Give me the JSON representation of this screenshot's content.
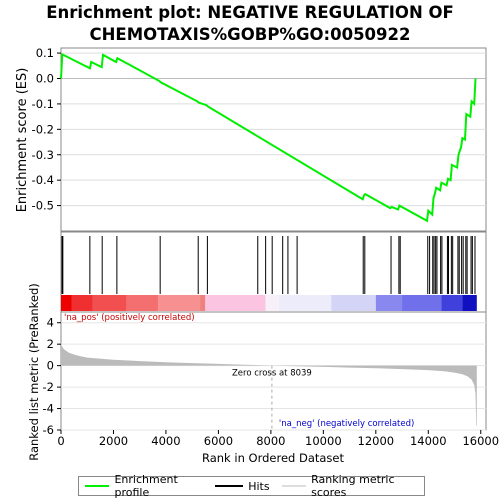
{
  "title": "Enrichment plot: NEGATIVE REGULATION OF CHEMOTAXIS%GOBP%GO:0050922",
  "colors": {
    "enrichment_line": "#00ee00",
    "hits": "#000000",
    "metric_fill": "#bbbbbb",
    "zero_cross": "#aaaaaa",
    "pos_label": "#cc0000",
    "neg_label": "#0000cc"
  },
  "legend": {
    "enrichment_profile": "Enrichment profile",
    "hits": "Hits",
    "ranking_metric": "Ranking metric scores"
  },
  "annotations": {
    "pos_label": "'na_pos' (positively correlated)",
    "neg_label": "'na_neg' (negatively correlated)",
    "zero_cross": "Zero cross at 8039"
  },
  "chart_data": {
    "type": "line",
    "ylabel_top": "Enrichment score (ES)",
    "ylabel_bottom": "Ranked list metric (PreRanked)",
    "xlabel": "Rank in Ordered Dataset",
    "xlim": [
      0,
      16200
    ],
    "x_ticks": [
      0,
      2000,
      4000,
      6000,
      8000,
      10000,
      12000,
      14000,
      16000
    ],
    "es_ylim": [
      -0.6,
      0.12
    ],
    "es_ticks": [
      0.1,
      0.0,
      -0.1,
      -0.2,
      -0.3,
      -0.4,
      -0.5
    ],
    "es_tick_labels": [
      "0.1",
      "0.0",
      "-0.1",
      "-0.2",
      "-0.3",
      "-0.4",
      "-0.5"
    ],
    "metric_ylim": [
      -6,
      5
    ],
    "metric_ticks": [
      4,
      2,
      0,
      -2,
      -4,
      -6
    ],
    "zero_cross": 8039,
    "total_genes": 15850,
    "es_profile": [
      [
        0,
        0.0
      ],
      [
        50,
        0.095
      ],
      [
        1100,
        0.04
      ],
      [
        1150,
        0.065
      ],
      [
        1550,
        0.045
      ],
      [
        1600,
        0.093
      ],
      [
        2100,
        0.065
      ],
      [
        2150,
        0.08
      ],
      [
        3750,
        -0.01
      ],
      [
        3800,
        -0.015
      ],
      [
        5200,
        -0.09
      ],
      [
        5250,
        -0.095
      ],
      [
        5550,
        -0.105
      ],
      [
        5600,
        -0.11
      ],
      [
        11500,
        -0.475
      ],
      [
        11550,
        -0.46
      ],
      [
        11600,
        -0.455
      ],
      [
        12550,
        -0.51
      ],
      [
        12600,
        -0.505
      ],
      [
        12850,
        -0.515
      ],
      [
        12900,
        -0.5
      ],
      [
        13950,
        -0.56
      ],
      [
        14000,
        -0.52
      ],
      [
        14150,
        -0.535
      ],
      [
        14200,
        -0.47
      ],
      [
        14250,
        -0.455
      ],
      [
        14300,
        -0.43
      ],
      [
        14450,
        -0.44
      ],
      [
        14500,
        -0.41
      ],
      [
        14700,
        -0.42
      ],
      [
        14750,
        -0.395
      ],
      [
        14850,
        -0.4
      ],
      [
        14900,
        -0.34
      ],
      [
        15100,
        -0.35
      ],
      [
        15150,
        -0.3
      ],
      [
        15250,
        -0.27
      ],
      [
        15300,
        -0.235
      ],
      [
        15400,
        -0.24
      ],
      [
        15450,
        -0.14
      ],
      [
        15600,
        -0.15
      ],
      [
        15650,
        -0.09
      ],
      [
        15750,
        -0.1
      ],
      [
        15800,
        0.0
      ]
    ],
    "hit_positions": [
      40,
      70,
      1100,
      1570,
      2130,
      3780,
      5230,
      5580,
      7500,
      7800,
      8050,
      8450,
      8650,
      9000,
      11520,
      11580,
      12580,
      12880,
      12930,
      13980,
      14050,
      14170,
      14220,
      14280,
      14330,
      14470,
      14520,
      14730,
      14770,
      14880,
      14930,
      15130,
      15180,
      15270,
      15330,
      15430,
      15480,
      15630,
      15680,
      15780
    ],
    "metric_curve": [
      [
        0,
        2.3
      ],
      [
        20,
        1.9
      ],
      [
        100,
        1.55
      ],
      [
        300,
        1.2
      ],
      [
        600,
        0.95
      ],
      [
        1000,
        0.75
      ],
      [
        2000,
        0.55
      ],
      [
        3000,
        0.42
      ],
      [
        4000,
        0.32
      ],
      [
        5000,
        0.24
      ],
      [
        6000,
        0.16
      ],
      [
        7000,
        0.09
      ],
      [
        8039,
        0.0
      ],
      [
        9000,
        -0.06
      ],
      [
        10000,
        -0.12
      ],
      [
        11000,
        -0.18
      ],
      [
        12000,
        -0.24
      ],
      [
        13000,
        -0.32
      ],
      [
        14000,
        -0.42
      ],
      [
        14600,
        -0.52
      ],
      [
        15000,
        -0.65
      ],
      [
        15300,
        -0.8
      ],
      [
        15500,
        -1.0
      ],
      [
        15650,
        -1.3
      ],
      [
        15750,
        -1.8
      ],
      [
        15800,
        -2.6
      ],
      [
        15830,
        -5.6
      ],
      [
        15850,
        -5.6
      ]
    ],
    "rank_color_bands": [
      [
        0,
        400,
        "#ee0000"
      ],
      [
        400,
        1200,
        "#f03030"
      ],
      [
        1200,
        2500,
        "#f25050"
      ],
      [
        2500,
        3700,
        "#f47070"
      ],
      [
        3700,
        5300,
        "#f79090"
      ],
      [
        5300,
        5500,
        "#f08080"
      ],
      [
        5500,
        7800,
        "#fbc4e0"
      ],
      [
        7800,
        8300,
        "#f8f0f8"
      ],
      [
        8300,
        10300,
        "#ececfb"
      ],
      [
        10300,
        12000,
        "#d4d4f6"
      ],
      [
        12000,
        13000,
        "#8888ee"
      ],
      [
        13000,
        14500,
        "#7070ea"
      ],
      [
        14500,
        15300,
        "#4040dd"
      ],
      [
        15300,
        15850,
        "#1010c0"
      ]
    ]
  }
}
